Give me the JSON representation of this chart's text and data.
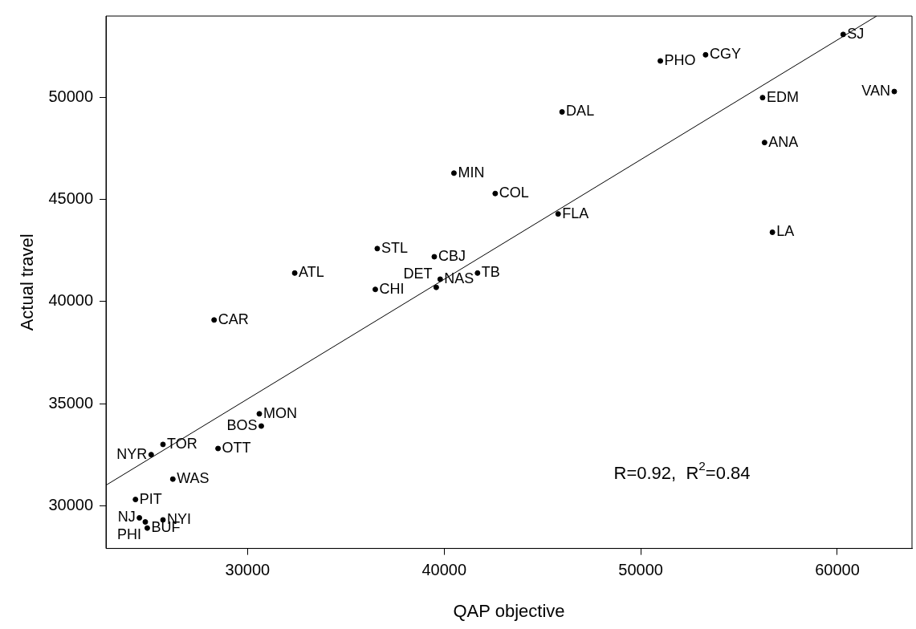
{
  "chart_data": {
    "type": "scatter",
    "xlabel": "QAP objective",
    "ylabel": "Actual travel",
    "xlim": [
      22800,
      63800
    ],
    "ylim": [
      27900,
      54000
    ],
    "xticks": [
      30000,
      40000,
      50000,
      60000
    ],
    "yticks": [
      30000,
      35000,
      40000,
      45000,
      50000
    ],
    "grid": false,
    "legend": false,
    "marker": "circle",
    "series": [
      {
        "color": "#000000",
        "x": [
          60300,
          62900,
          53300,
          51000,
          46000,
          56200,
          56300,
          40500,
          42600,
          45800,
          56700,
          36600,
          39500,
          32400,
          41700,
          39800,
          36500,
          39600,
          28300,
          30600,
          30700,
          28500,
          25700,
          25100,
          26200,
          24300,
          24500,
          25700,
          24800,
          24900
        ],
        "values": [
          53100,
          50300,
          52100,
          51800,
          49300,
          50000,
          47800,
          46300,
          45300,
          44300,
          43400,
          42600,
          42200,
          41400,
          41400,
          41100,
          40600,
          40700,
          39100,
          34500,
          33900,
          32800,
          33000,
          32500,
          31300,
          30300,
          29400,
          29300,
          29200,
          28900
        ]
      },
      {
        "type": "line",
        "color": "#000000",
        "line_style": "solid",
        "marker": "none",
        "x": [
          22800,
          62000
        ],
        "values": [
          31000,
          54000
        ]
      }
    ],
    "annotations": [
      {
        "text": "SJ",
        "x": 60300,
        "y": 53100
      },
      {
        "text": "VAN",
        "x": 62900,
        "y": 50300
      },
      {
        "text": "CGY",
        "x": 53300,
        "y": 52100
      },
      {
        "text": "PHO",
        "x": 51000,
        "y": 51800
      },
      {
        "text": "DAL",
        "x": 46000,
        "y": 49300
      },
      {
        "text": "EDM",
        "x": 56200,
        "y": 50000
      },
      {
        "text": "ANA",
        "x": 56300,
        "y": 47800
      },
      {
        "text": "MIN",
        "x": 40500,
        "y": 46300
      },
      {
        "text": "COL",
        "x": 42600,
        "y": 45300
      },
      {
        "text": "FLA",
        "x": 45800,
        "y": 44300
      },
      {
        "text": "LA",
        "x": 56700,
        "y": 43400
      },
      {
        "text": "STL",
        "x": 36600,
        "y": 42600
      },
      {
        "text": "CBJ",
        "x": 39500,
        "y": 42200
      },
      {
        "text": "ATL",
        "x": 32400,
        "y": 41400
      },
      {
        "text": "TB",
        "x": 41700,
        "y": 41400
      },
      {
        "text": "NAS",
        "x": 39800,
        "y": 41100
      },
      {
        "text": "CHI",
        "x": 36500,
        "y": 40600
      },
      {
        "text": "DET",
        "x": 39600,
        "y": 40700
      },
      {
        "text": "CAR",
        "x": 28300,
        "y": 39100
      },
      {
        "text": "MON",
        "x": 30600,
        "y": 34500
      },
      {
        "text": "BOS",
        "x": 30700,
        "y": 33900
      },
      {
        "text": "OTT",
        "x": 28500,
        "y": 32800
      },
      {
        "text": "TOR",
        "x": 25700,
        "y": 33000
      },
      {
        "text": "NYR",
        "x": 25100,
        "y": 32500
      },
      {
        "text": "WAS",
        "x": 26200,
        "y": 31300
      },
      {
        "text": "PIT",
        "x": 24300,
        "y": 30300
      },
      {
        "text": "NJ",
        "x": 24500,
        "y": 29400
      },
      {
        "text": "NYI",
        "x": 25700,
        "y": 29300
      },
      {
        "text": "PHI",
        "x": 24800,
        "y": 29200
      },
      {
        "text": "BUF",
        "x": 24900,
        "y": 28900
      },
      "R=0.92,  R$^{2}$=0.84"
    ]
  }
}
